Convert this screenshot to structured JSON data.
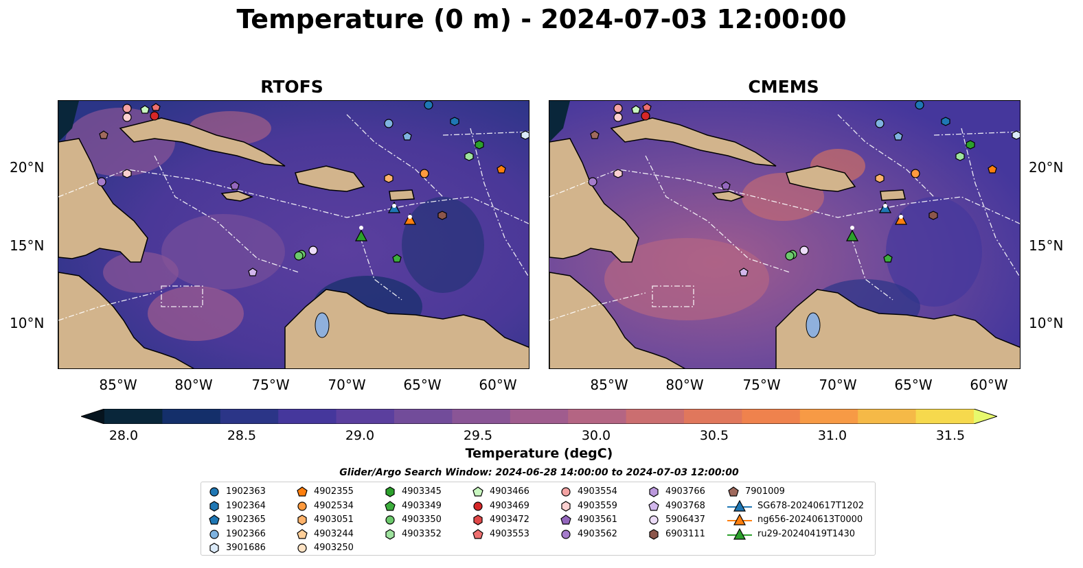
{
  "title": "Temperature (0 m) - 2024-07-03 12:00:00",
  "panels": [
    {
      "title": "RTOFS"
    },
    {
      "title": "CMEMS"
    }
  ],
  "lon_ticks": [
    "85°W",
    "80°W",
    "75°W",
    "70°W",
    "65°W",
    "60°W"
  ],
  "lat_ticks": [
    "20°N",
    "15°N",
    "10°N"
  ],
  "colorbar": {
    "label": "Temperature (degC)",
    "ticks": [
      "28.0",
      "28.5",
      "29.0",
      "29.5",
      "30.0",
      "30.5",
      "31.0",
      "31.5"
    ],
    "colors": [
      "#09263a",
      "#142f6a",
      "#2b3587",
      "#45379c",
      "#5b3f9e",
      "#724c9a",
      "#8a5596",
      "#a05c8e",
      "#b46583",
      "#cb6e70",
      "#e0775c",
      "#ef824d",
      "#f79a45",
      "#f5b947",
      "#f6d94d"
    ],
    "under_color": "#06141e",
    "over_color": "#e7f96d"
  },
  "search_window": "Glider/Argo Search Window: 2024-06-28 14:00:00 to 2024-07-03 12:00:00",
  "legend": [
    {
      "label": "1902363",
      "marker": "circle",
      "color": "#1f77b4"
    },
    {
      "label": "1902364",
      "marker": "hexagon",
      "color": "#1f77b4"
    },
    {
      "label": "1902365",
      "marker": "pentagon",
      "color": "#1f77b4"
    },
    {
      "label": "1902366",
      "marker": "circle",
      "color": "#7fb3e0"
    },
    {
      "label": "3901686",
      "marker": "hexagon",
      "color": "#dbeaf8"
    },
    {
      "label": "4902355",
      "marker": "pentagon",
      "color": "#ff7f0e"
    },
    {
      "label": "4902534",
      "marker": "circle",
      "color": "#ff9a3e"
    },
    {
      "label": "4903051",
      "marker": "hexagon",
      "color": "#ffb36b"
    },
    {
      "label": "4903244",
      "marker": "pentagon",
      "color": "#ffcf99"
    },
    {
      "label": "4903250",
      "marker": "circle",
      "color": "#ffe3c4"
    },
    {
      "label": "4903345",
      "marker": "hexagon",
      "color": "#2ca02c"
    },
    {
      "label": "4903349",
      "marker": "pentagon",
      "color": "#3dae3d"
    },
    {
      "label": "4903350",
      "marker": "circle",
      "color": "#6cc96c"
    },
    {
      "label": "4903352",
      "marker": "hexagon",
      "color": "#9ee29e"
    },
    {
      "label": "4903466",
      "marker": "pentagon",
      "color": "#c9f7c0"
    },
    {
      "label": "4903469",
      "marker": "circle",
      "color": "#d62728"
    },
    {
      "label": "4903472",
      "marker": "hexagon",
      "color": "#e04848"
    },
    {
      "label": "4903553",
      "marker": "pentagon",
      "color": "#ee7070"
    },
    {
      "label": "4903554",
      "marker": "circle",
      "color": "#f4a3a3"
    },
    {
      "label": "4903559",
      "marker": "hexagon",
      "color": "#fbd0d0"
    },
    {
      "label": "4903561",
      "marker": "pentagon",
      "color": "#9467bd"
    },
    {
      "label": "4903562",
      "marker": "circle",
      "color": "#a57ccb"
    },
    {
      "label": "4903766",
      "marker": "hexagon",
      "color": "#bb98dc"
    },
    {
      "label": "4903768",
      "marker": "pentagon",
      "color": "#d2b7ec"
    },
    {
      "label": "5906437",
      "marker": "circle",
      "color": "#ecdcf8"
    },
    {
      "label": "6903111",
      "marker": "hexagon",
      "color": "#8c564b"
    },
    {
      "label": "7901009",
      "marker": "pentagon",
      "color": "#a06a5d"
    },
    {
      "label": "SG678-20240617T1202",
      "marker": "triangle",
      "color": "#1f77b4"
    },
    {
      "label": "ng656-20240613T0000",
      "marker": "triangle",
      "color": "#ff7f0e"
    },
    {
      "label": "ru29-20240419T1430",
      "marker": "triangle",
      "color": "#2ca02c"
    }
  ]
}
